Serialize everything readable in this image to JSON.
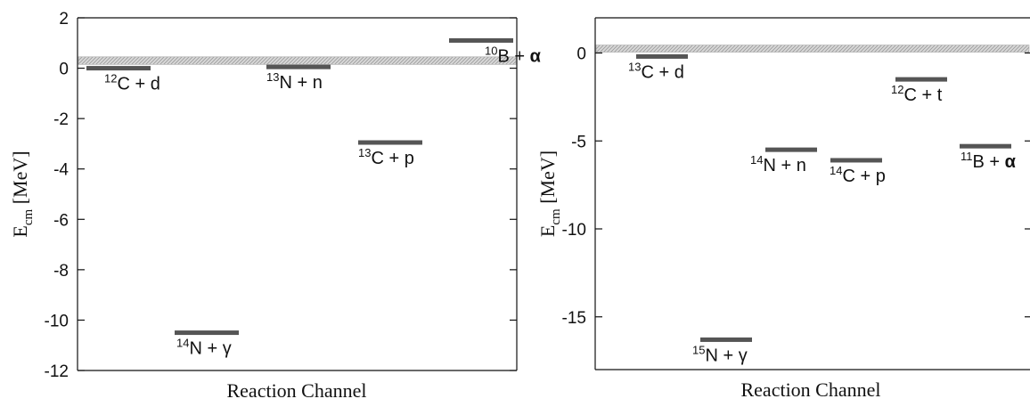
{
  "chart_data": [
    {
      "type": "level-diagram",
      "title": "",
      "xlabel": "Reaction Channel",
      "ylabel": {
        "main": "E",
        "sub": "cm",
        "rest": " [MeV]"
      },
      "ylim": [
        -12,
        2
      ],
      "yticks": [
        2,
        0,
        -2,
        -4,
        -6,
        -8,
        -10,
        -12
      ],
      "resonance_band": [
        0.15,
        0.45
      ],
      "levels": [
        {
          "mass": "12",
          "name": "C + d",
          "energy": 0.0,
          "bold": false
        },
        {
          "mass": "14",
          "name": "N + γ",
          "energy": -10.5,
          "bold": false
        },
        {
          "mass": "13",
          "name": "N + n",
          "energy": 0.05,
          "bold": false
        },
        {
          "mass": "13",
          "name": "C + p",
          "energy": -2.95,
          "bold": false
        },
        {
          "mass": "10",
          "name": "B + α",
          "energy": 1.1,
          "bold": true
        }
      ]
    },
    {
      "type": "level-diagram",
      "title": "",
      "xlabel": "Reaction Channel",
      "ylabel": {
        "main": "E",
        "sub": "cm",
        "rest": " [MeV]"
      },
      "ylim": [
        -18,
        2
      ],
      "yticks": [
        0,
        -5,
        -10,
        -15
      ],
      "resonance_band": [
        0.05,
        0.45
      ],
      "levels": [
        {
          "mass": "13",
          "name": "C + d",
          "energy": -0.2,
          "bold": false
        },
        {
          "mass": "15",
          "name": "N + γ",
          "energy": -16.3,
          "bold": false
        },
        {
          "mass": "14",
          "name": "N + n",
          "energy": -5.5,
          "bold": false
        },
        {
          "mass": "14",
          "name": "C + p",
          "energy": -6.1,
          "bold": false
        },
        {
          "mass": "12",
          "name": "C + t",
          "energy": -1.5,
          "bold": false
        },
        {
          "mass": "11",
          "name": "B + α",
          "energy": -5.3,
          "bold": true
        }
      ]
    }
  ],
  "colors": {
    "level_bar": "#555555",
    "band_fill": "#cfcfcf",
    "band_hatch": "#9a9a9a",
    "axis": "#111111"
  }
}
